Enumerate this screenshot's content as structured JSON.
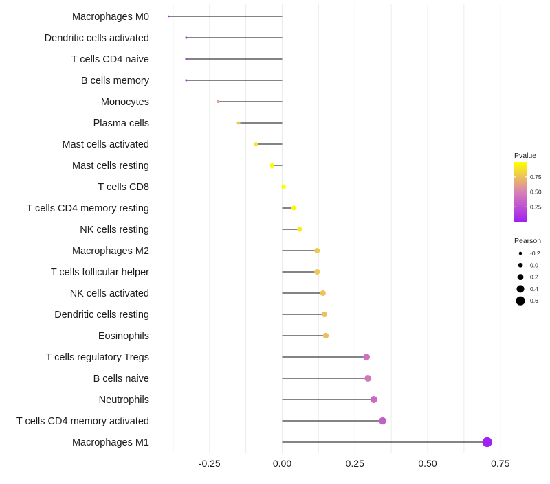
{
  "chart_data": {
    "type": "lollipop",
    "title": "",
    "xlabel": "",
    "ylabel": "",
    "xlim": [
      -0.4,
      0.75
    ],
    "x_ticks": [
      {
        "value": -0.25,
        "label": "-0.25"
      },
      {
        "value": 0.0,
        "label": "0.00"
      },
      {
        "value": 0.25,
        "label": "0.25"
      },
      {
        "value": 0.5,
        "label": "0.50"
      },
      {
        "value": 0.75,
        "label": "0.75"
      }
    ],
    "grid": true,
    "categories": [
      "Macrophages M0",
      "Dendritic cells activated",
      "T cells CD4 naive",
      "B cells memory",
      "Monocytes",
      "Plasma cells",
      "Mast cells activated",
      "Mast cells resting",
      "T cells CD8",
      "T cells CD4 memory resting",
      "NK cells resting",
      "Macrophages M2",
      "T cells follicular helper",
      "NK cells activated",
      "Dendritic cells resting",
      "Eosinophils",
      "T cells regulatory  Tregs ",
      "B cells naive",
      "Neutrophils",
      "T cells CD4 memory activated",
      "Macrophages M1"
    ],
    "pearson": [
      -0.39,
      -0.33,
      -0.33,
      -0.33,
      -0.22,
      -0.15,
      -0.09,
      -0.035,
      0.005,
      0.04,
      0.06,
      0.12,
      0.12,
      0.14,
      0.145,
      0.15,
      0.29,
      0.295,
      0.315,
      0.345,
      0.705
    ],
    "pvalue": [
      0.05,
      0.12,
      0.14,
      0.15,
      0.62,
      0.78,
      0.88,
      0.98,
      0.99,
      0.97,
      0.92,
      0.78,
      0.78,
      0.76,
      0.75,
      0.74,
      0.42,
      0.44,
      0.38,
      0.32,
      0.01
    ],
    "color_legend": {
      "title": "Pvalue",
      "ticks": [
        0.25,
        0.5,
        0.75
      ],
      "tick_labels": [
        "0.25",
        "0.50",
        "0.75"
      ],
      "range": [
        0.0,
        1.0
      ],
      "low_color": "#a020f0",
      "mid_color": "#d982b5",
      "high_color": "#ffff00"
    },
    "size_legend": {
      "title": "Pearson",
      "values": [
        -0.2,
        0.0,
        0.2,
        0.4,
        0.6
      ],
      "labels": [
        "-0.2",
        "0.0",
        "0.2",
        "0.4",
        "0.6"
      ],
      "color": "#000000"
    }
  }
}
